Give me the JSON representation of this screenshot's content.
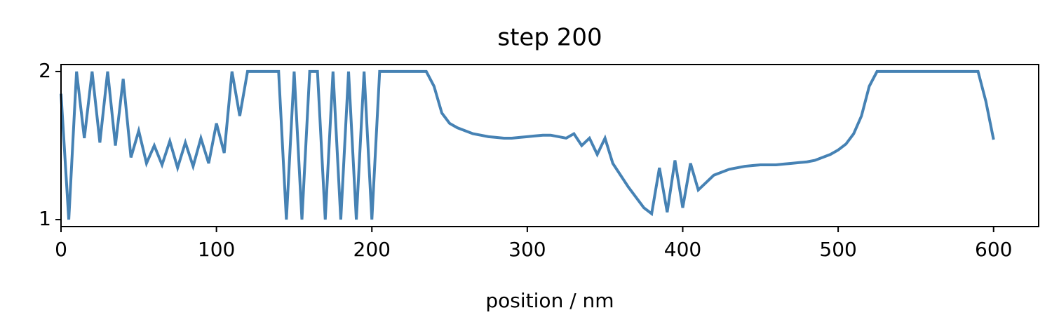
{
  "chart_data": {
    "type": "line",
    "title": "step 200",
    "xlabel": "position / nm",
    "x": [
      0,
      5,
      10,
      15,
      20,
      25,
      30,
      35,
      40,
      45,
      50,
      55,
      60,
      65,
      70,
      75,
      80,
      85,
      90,
      95,
      100,
      105,
      110,
      115,
      120,
      125,
      130,
      135,
      140,
      145,
      150,
      155,
      160,
      165,
      170,
      175,
      180,
      185,
      190,
      195,
      200,
      205,
      210,
      215,
      220,
      225,
      230,
      235,
      240,
      245,
      250,
      255,
      260,
      265,
      270,
      275,
      280,
      285,
      290,
      295,
      300,
      305,
      310,
      315,
      320,
      325,
      330,
      335,
      340,
      345,
      350,
      355,
      360,
      365,
      370,
      375,
      380,
      385,
      390,
      395,
      400,
      405,
      410,
      415,
      420,
      425,
      430,
      435,
      440,
      445,
      450,
      455,
      460,
      465,
      470,
      475,
      480,
      485,
      490,
      495,
      500,
      505,
      510,
      515,
      520,
      525,
      530,
      535,
      540,
      545,
      550,
      555,
      560,
      565,
      570,
      575,
      580,
      585,
      590,
      595,
      600
    ],
    "series": [
      {
        "color": "#4682b4",
        "values": [
          1.85,
          1.0,
          2.0,
          1.55,
          2.0,
          1.52,
          2.0,
          1.5,
          1.95,
          1.42,
          1.6,
          1.38,
          1.5,
          1.37,
          1.53,
          1.35,
          1.52,
          1.36,
          1.55,
          1.38,
          1.65,
          1.45,
          2.0,
          1.7,
          2.0,
          2,
          2,
          2,
          2,
          1,
          2,
          1,
          2,
          2,
          1,
          2,
          1,
          2,
          1,
          2,
          1,
          2,
          2,
          2,
          2,
          2,
          2,
          2,
          1.9,
          1.72,
          1.65,
          1.62,
          1.6,
          1.58,
          1.57,
          1.56,
          1.555,
          1.55,
          1.55,
          1.555,
          1.56,
          1.565,
          1.57,
          1.57,
          1.56,
          1.55,
          1.58,
          1.5,
          1.55,
          1.44,
          1.55,
          1.38,
          1.3,
          1.22,
          1.15,
          1.08,
          1.04,
          1.35,
          1.05,
          1.4,
          1.08,
          1.38,
          1.2,
          1.25,
          1.3,
          1.32,
          1.34,
          1.35,
          1.36,
          1.365,
          1.37,
          1.37,
          1.37,
          1.375,
          1.38,
          1.385,
          1.39,
          1.4,
          1.42,
          1.44,
          1.47,
          1.51,
          1.58,
          1.7,
          1.9,
          2,
          2,
          2,
          2,
          2,
          2,
          2,
          2,
          2,
          2,
          2,
          2,
          2,
          2,
          1.8,
          1.54
        ]
      }
    ],
    "xlim": [
      0,
      629
    ],
    "ylim": [
      0.953,
      2.047
    ],
    "xticks": [
      0,
      100,
      200,
      300,
      400,
      500,
      600
    ],
    "yticks": [
      1,
      2
    ]
  }
}
